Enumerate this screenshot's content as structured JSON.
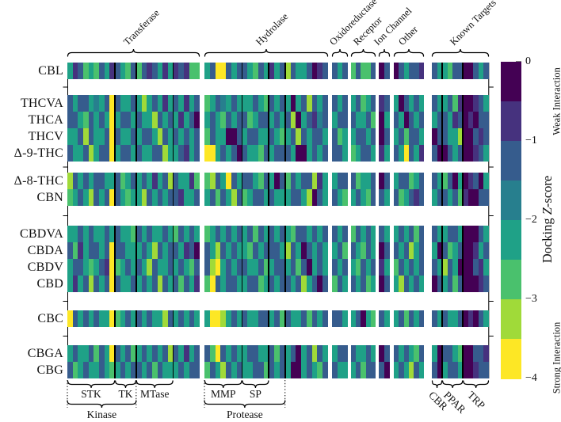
{
  "figure": {
    "kind": "cannabinoid-vs-protein-target docking heatmap"
  },
  "chart_data": {
    "type": "heatmap",
    "description": "Docking Z-scores of cannabinoids (rows) against protein target classes (columns). More negative Z-score = stronger predicted interaction.",
    "n_rows": 14,
    "n_columns": 75,
    "row_groups": [
      [
        "CBL"
      ],
      [
        "THCVA",
        "THCA",
        "THCV",
        "Δ-9-THC"
      ],
      [
        "Δ-8-THC",
        "CBN"
      ],
      [
        "CBDVA",
        "CBDA",
        "CBDV",
        "CBD"
      ],
      [
        "CBC"
      ],
      [
        "CBGA",
        "CBG"
      ]
    ],
    "column_blocks": [
      {
        "label": "Transferase",
        "sub_blocks": [
          {
            "label": "STK",
            "columns": 9
          },
          {
            "label": "TK",
            "columns": 4
          },
          {
            "label": "MTase",
            "columns": 7
          },
          {
            "label": "",
            "columns": 5
          }
        ]
      },
      {
        "label": "Hydrolase",
        "sub_blocks": [
          {
            "label": "MMP",
            "columns": 7
          },
          {
            "label": "SP",
            "columns": 5
          },
          {
            "label": "",
            "columns": 3
          },
          {
            "label": "",
            "columns": 8
          }
        ]
      },
      {
        "label": "Oxidoreductase",
        "sub_blocks": [
          {
            "label": "",
            "columns": 3
          }
        ]
      },
      {
        "label": "Receptor",
        "sub_blocks": [
          {
            "label": "",
            "columns": 5
          }
        ]
      },
      {
        "label": "Ion Channel",
        "sub_blocks": [
          {
            "label": "",
            "columns": 2
          }
        ]
      },
      {
        "label": "Other",
        "sub_blocks": [
          {
            "label": "",
            "columns": 6
          }
        ]
      },
      {
        "label": "Known Targets",
        "rotated_bottom_labels": true,
        "sub_blocks": [
          {
            "label": "CBR",
            "columns": 2
          },
          {
            "label": "PPAR",
            "columns": 4
          },
          {
            "label": "TRP",
            "columns": 5
          }
        ]
      }
    ],
    "bracket_groups": [
      {
        "label": "Kinase",
        "block": 0,
        "from_sub": 0,
        "to_sub": 1
      },
      {
        "label": "Protease",
        "block": 1,
        "from_sub": 0,
        "to_sub": 2
      }
    ],
    "palette": [
      "#440154",
      "#46327e",
      "#365c8d",
      "#277f8e",
      "#1fa187",
      "#4ac16d",
      "#a0da39",
      "#fde725"
    ],
    "z_bin_edges": [
      0,
      -0.5,
      -1,
      -1.5,
      -2,
      -2.5,
      -3,
      -3.5,
      -4
    ],
    "cell_encoding": "Each digit d is one cell: color = palette[d]; docking Z-score bin = z_bin_edges[d] to z_bin_edges[d+1]. 0 = weak interaction (dark purple), 7 = strong interaction (yellow). Segments per row follow sub-block order: STK,TK,MTase,other-transferase,MMP,SP,other-protease,other-hydrolase,oxidoreductase,receptor,ion-channel,other,CBR,PPAR,TRP.",
    "cells": [
      [
        "412545241",
        "2452",
        "5212414",
        "12155",
        "4277242",
        "24524",
        "142",
        "62442012",
        "242",
        "52552",
        "02",
        "024221",
        "24",
        "4522",
        "00242"
      ],
      [
        "242243427",
        "2442",
        "4642414",
        "24142",
        "5423424",
        "44245",
        "242",
        "40426242",
        "242",
        "42542",
        "12",
        "402424",
        "24",
        "4251",
        "00124"
      ],
      [
        "224524247",
        "4224",
        "2446242",
        "41420",
        "4245242",
        "25422",
        "424",
        "26042132",
        "422",
        "24425",
        "04",
        "240242",
        "42",
        "2412",
        "01022"
      ],
      [
        "442624427",
        "2442",
        "4224624",
        "24242",
        "5244002",
        "42244",
        "245",
        "42624224",
        "254",
        "42242",
        "02",
        "425224",
        "02",
        "2446",
        "00212"
      ],
      [
        "244264227",
        "4224",
        "2442264",
        "42142",
        "7742420",
        "24452",
        "422",
        "24004242",
        "224",
        "54224",
        "14",
        "247241",
        "20",
        "0242",
        "00124"
      ],
      [
        "624242244",
        "2542",
        "4241426",
        "24415",
        "5624724",
        "22452",
        "402",
        "52422614",
        "422",
        "25442",
        "02",
        "422542",
        "24",
        "5204",
        "01204"
      ],
      [
        "542462427",
        "2454",
        "4624242",
        "21442",
        "4252462",
        "54224",
        "244",
        "42246024",
        "245",
        "42452",
        "24",
        "254212",
        "42",
        "2425",
        "10022"
      ],
      [
        "442424424",
        "2445",
        "2424424",
        "52424",
        "5424242",
        "42524",
        "242",
        "45224242",
        "242",
        "52424",
        "24",
        "424252",
        "24",
        "4224",
        "00024"
      ],
      [
        "251422427",
        "2244",
        "4246242",
        "24120",
        "2462424",
        "45242",
        "224",
        "62402424",
        "425",
        "24524",
        "02",
        "242642",
        "40",
        "2542",
        "00142"
      ],
      [
        "422454217",
        "5424",
        "2462442",
        "42452",
        "2674242",
        "24425",
        "422",
        "42520424",
        "242",
        "45242",
        "14",
        "524242",
        "24",
        "6240",
        "00214"
      ],
      [
        "414262427",
        "2442",
        "4242624",
        "25241",
        "5724224",
        "42254",
        "242",
        "24264202",
        "524",
        "24254",
        "02",
        "462424",
        "02",
        "4252",
        "00012"
      ],
      [
        "724242447",
        "5424",
        "2424462",
        "42424",
        "4776424",
        "24422",
        "425",
        "24425242",
        "224",
        "42045",
        "24",
        "425242",
        "24",
        "2442",
        "01024"
      ],
      [
        "424425247",
        "2425",
        "4242426",
        "24142",
        "2572424",
        "42244",
        "252",
        "42042624",
        "422",
        "24424",
        "02",
        "242452",
        "40",
        "2245",
        "00221"
      ],
      [
        "254244245",
        "4242",
        "2425244",
        "42422",
        "5246242",
        "44225",
        "242",
        "40042452",
        "244",
        "42522",
        "20",
        "424624",
        "20",
        "4224",
        "00122"
      ]
    ]
  },
  "colorbar": {
    "ticks": [
      "0",
      "−1",
      "−2",
      "−3",
      "−4"
    ],
    "title": "Docking Z-score",
    "title_parts": [
      "Docking ",
      "Z",
      "-score"
    ],
    "weak_label": "Weak Interaction",
    "strong_label": "Strong Interaction"
  }
}
